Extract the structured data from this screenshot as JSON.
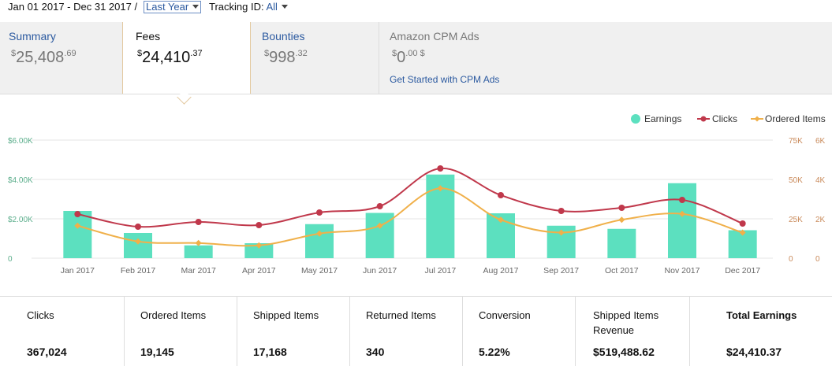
{
  "header": {
    "date_range": "Jan 01 2017 - Dec 31 2017 /",
    "period_select": "Last Year",
    "tracking_label": "Tracking ID:",
    "tracking_value": "All"
  },
  "tabs": [
    {
      "name": "Summary",
      "currency": "$",
      "whole": "25,408",
      "cents": ".69"
    },
    {
      "name": "Fees",
      "currency": "$",
      "whole": "24,410",
      "cents": ".37"
    },
    {
      "name": "Bounties",
      "currency": "$",
      "whole": "998",
      "cents": ".32"
    },
    {
      "name": "Amazon CPM Ads",
      "currency": "$",
      "whole": "0",
      "cents": ".00 $",
      "link": "Get Started with CPM Ads"
    }
  ],
  "legend": {
    "earnings": "Earnings",
    "clicks": "Clicks",
    "ordered": "Ordered Items"
  },
  "colors": {
    "earnings": "#5ce0bf",
    "clicks": "#c0384b",
    "ordered": "#f0b04a",
    "link": "#2c5aa0"
  },
  "chart_data": {
    "type": "bar",
    "categories": [
      "Jan 2017",
      "Feb 2017",
      "Mar 2017",
      "Apr 2017",
      "May 2017",
      "Jun 2017",
      "Jul 2017",
      "Aug 2017",
      "Sep 2017",
      "Oct 2017",
      "Nov 2017",
      "Dec 2017"
    ],
    "series": [
      {
        "name": "Earnings",
        "type": "bar",
        "axis": "left",
        "values": [
          2400,
          1280,
          650,
          760,
          1730,
          2300,
          4250,
          2280,
          1650,
          1490,
          3810,
          1420
        ]
      },
      {
        "name": "Clicks",
        "type": "line",
        "axis": "right-1",
        "values": [
          28000,
          20000,
          23000,
          21000,
          29000,
          33000,
          57000,
          40000,
          30000,
          32000,
          37000,
          22000
        ]
      },
      {
        "name": "Ordered Items",
        "type": "line",
        "axis": "right-2",
        "values": [
          1650,
          850,
          770,
          650,
          1250,
          1650,
          3550,
          1950,
          1300,
          1950,
          2250,
          1300
        ]
      }
    ],
    "y_left": {
      "ticks": [
        "0",
        "$2.00K",
        "$4.00K",
        "$6.00K"
      ],
      "range": [
        0,
        6000
      ]
    },
    "y_right_1": {
      "ticks": [
        "0",
        "25K",
        "50K",
        "75K"
      ],
      "range": [
        0,
        75000
      ]
    },
    "y_right_2": {
      "ticks": [
        "0",
        "2K",
        "4K",
        "6K"
      ],
      "range": [
        0,
        6000
      ]
    },
    "legend_position": "top-right"
  },
  "stats": [
    {
      "label": "Clicks",
      "value": "367,024"
    },
    {
      "label": "Ordered Items",
      "value": "19,145"
    },
    {
      "label": "Shipped Items",
      "value": "17,168"
    },
    {
      "label": "Returned Items",
      "value": "340"
    },
    {
      "label": "Conversion",
      "value": "5.22%"
    },
    {
      "label": "Shipped Items Revenue",
      "value": "$519,488.62"
    },
    {
      "label": "Total Earnings",
      "value": "$24,410.37"
    }
  ]
}
